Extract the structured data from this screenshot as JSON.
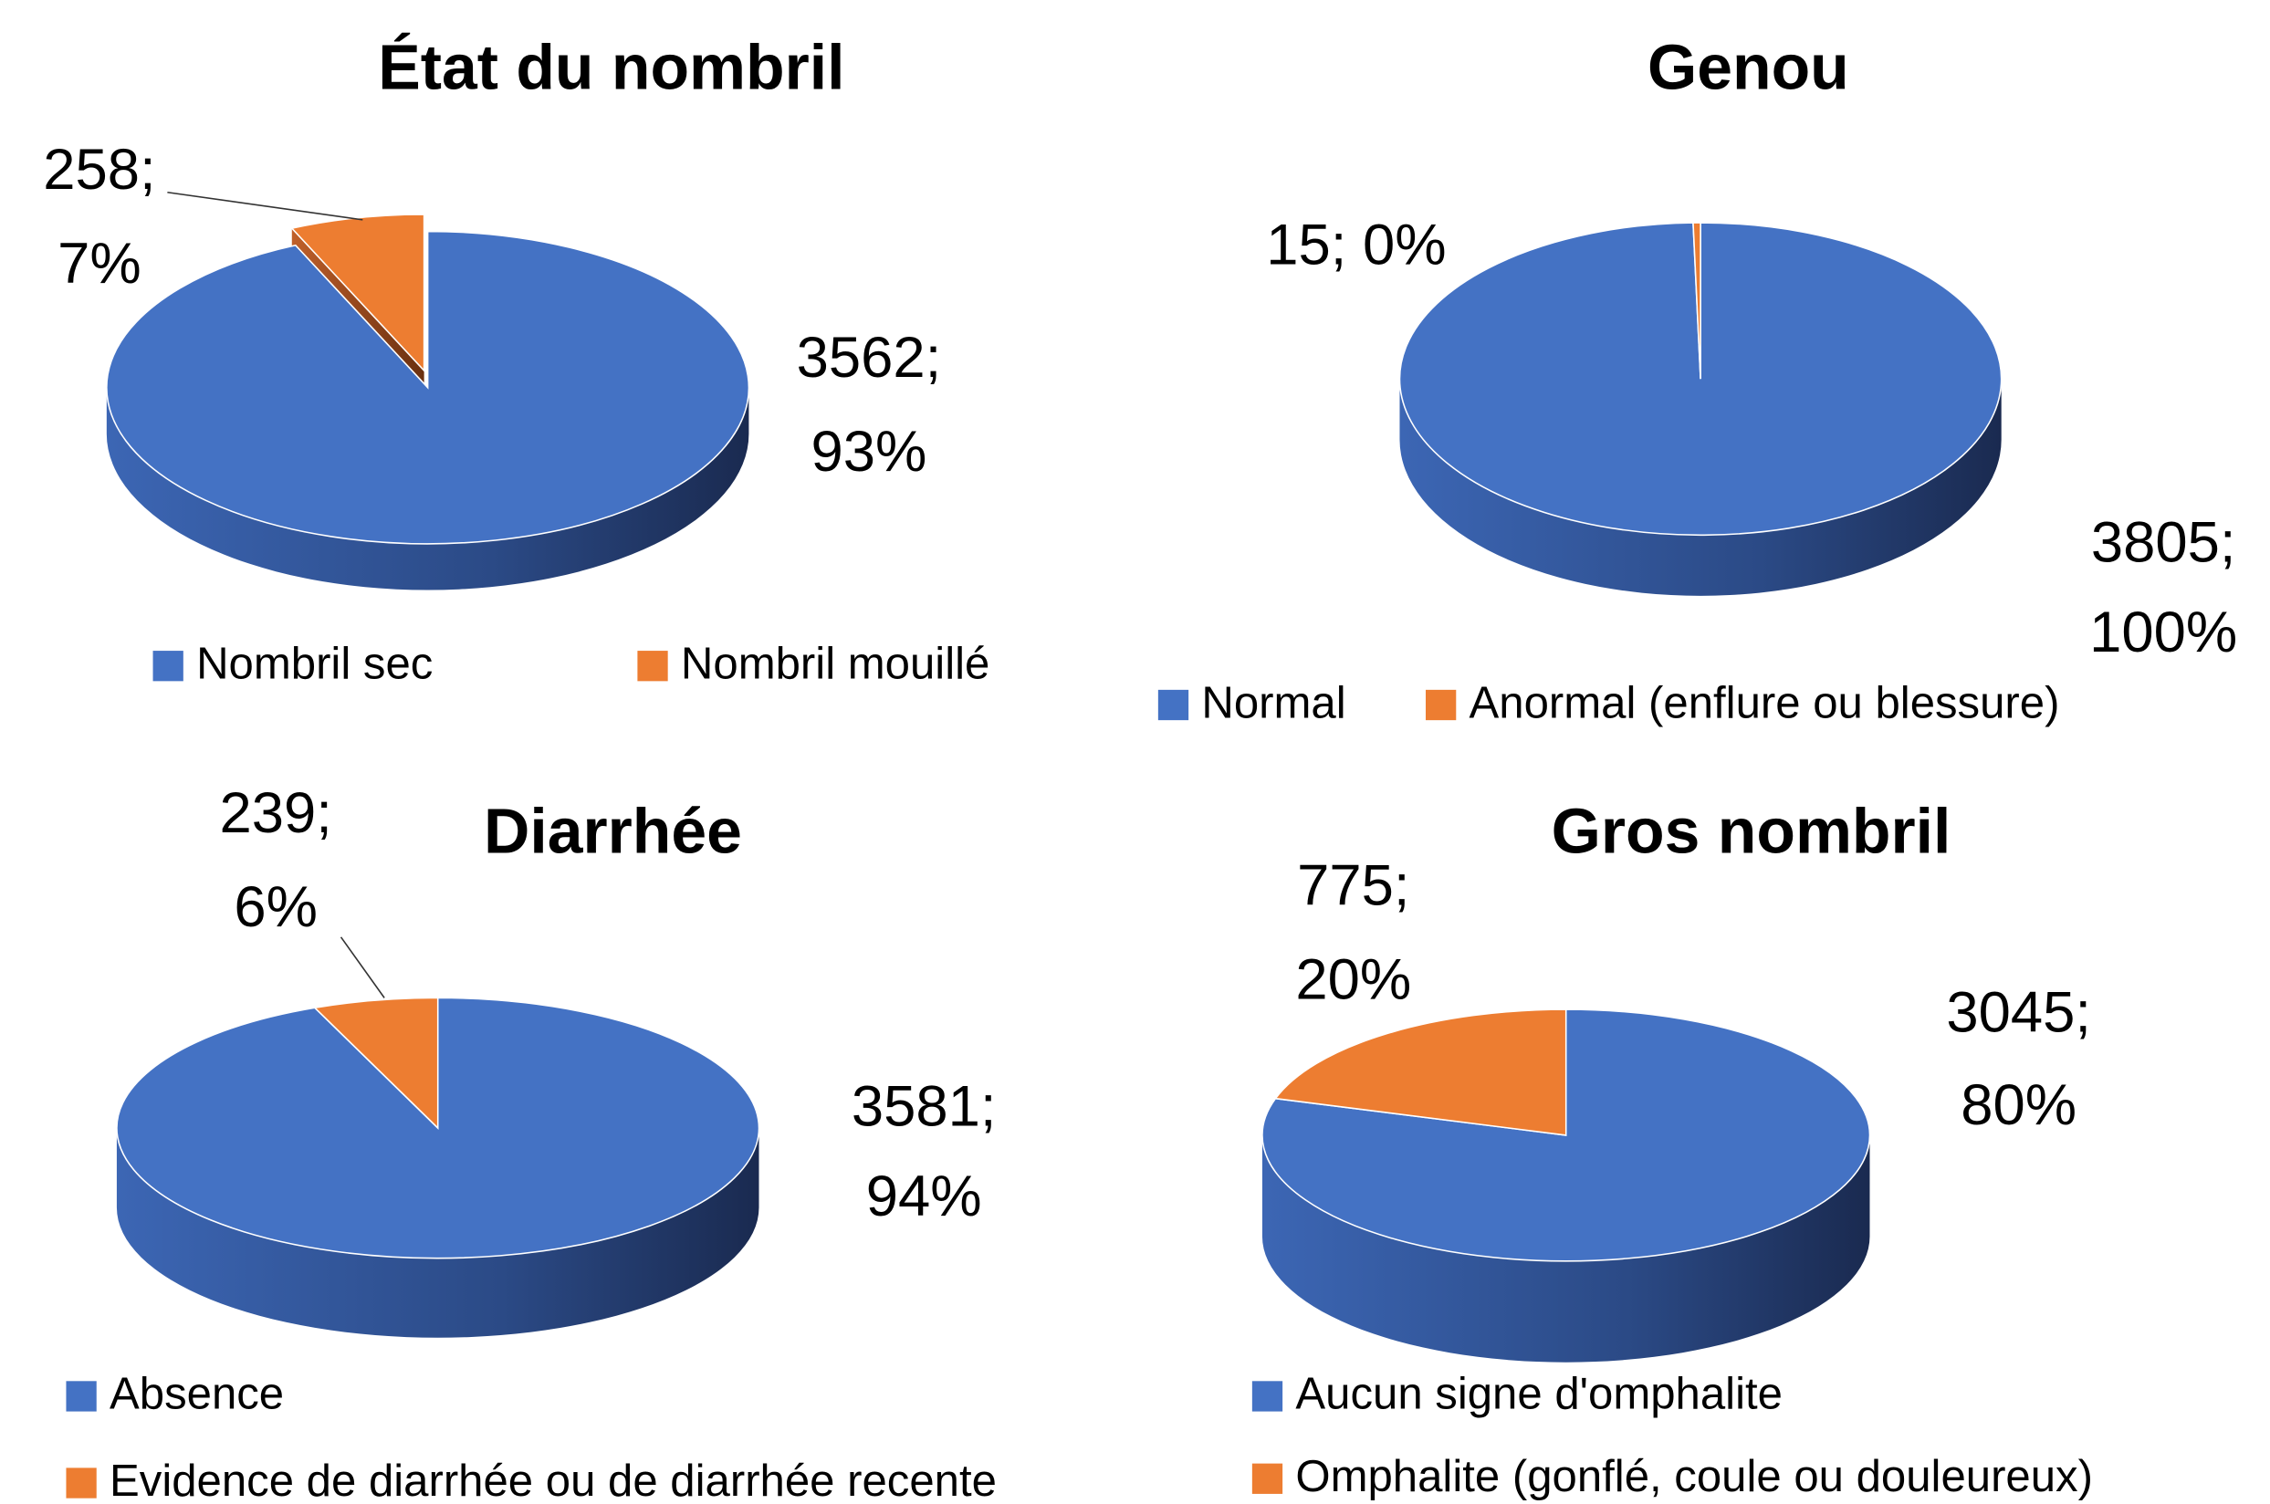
{
  "chart_data": [
    {
      "type": "pie",
      "title": "État du nombril",
      "categories": [
        "Nombril sec",
        "Nombril mouillé"
      ],
      "values": [
        3562,
        258
      ],
      "value_labels": [
        [
          "3562;",
          "93%"
        ],
        [
          "258;",
          "7%"
        ]
      ],
      "colors": [
        "#4472c4",
        "#ed7d31"
      ]
    },
    {
      "type": "pie",
      "title": "Genou",
      "categories": [
        "Normal",
        "Anormal (enflure ou blessure)"
      ],
      "values": [
        3805,
        15
      ],
      "value_labels": [
        [
          "3805;",
          "100%"
        ],
        [
          "15; 0%"
        ]
      ],
      "colors": [
        "#4472c4",
        "#ed7d31"
      ]
    },
    {
      "type": "pie",
      "title": "Diarrhée",
      "categories": [
        "Absence",
        "Evidence de diarrhée ou de diarrhée recente"
      ],
      "values": [
        3581,
        239
      ],
      "value_labels": [
        [
          "3581;",
          "94%"
        ],
        [
          "239;",
          "6%"
        ]
      ],
      "colors": [
        "#4472c4",
        "#ed7d31"
      ]
    },
    {
      "type": "pie",
      "title": "Gros nombril",
      "categories": [
        "Aucun signe d'omphalite",
        "Omphalite (gonflé, coule ou douleureux)"
      ],
      "values": [
        3045,
        775
      ],
      "value_labels": [
        [
          "3045;",
          "80%"
        ],
        [
          "775;",
          "20%"
        ]
      ],
      "colors": [
        "#4472c4",
        "#ed7d31"
      ]
    }
  ]
}
